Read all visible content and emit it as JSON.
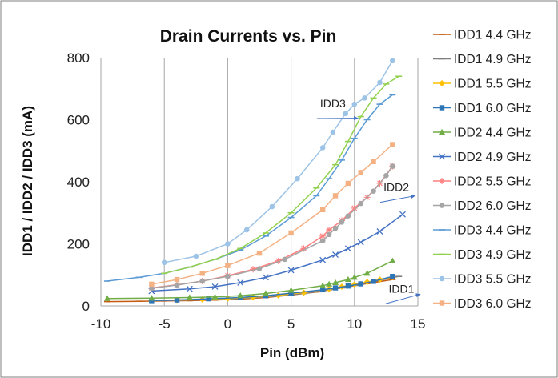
{
  "chart_data": {
    "type": "line",
    "title": "Drain Currents vs. Pin",
    "xlabel": "Pin (dBm)",
    "ylabel": "IDD1 / IDD2 / IDD3 (mA)",
    "xlim": [
      -10,
      15
    ],
    "ylim": [
      0,
      800
    ],
    "x_ticks": [
      "-10",
      "-5",
      "0",
      "5",
      "10",
      "15"
    ],
    "y_ticks": [
      "0",
      "200",
      "400",
      "600",
      "800"
    ],
    "grid": "vertical",
    "legend_position": "right",
    "annotations": [
      {
        "text": "IDD3",
        "x": 8.3,
        "y": 640,
        "arrow_to": [
          10.3,
          605
        ]
      },
      {
        "text": "IDD2",
        "x": 13.3,
        "y": 370,
        "arrow_to": [
          14.8,
          355
        ]
      },
      {
        "text": "IDD1",
        "x": 13.7,
        "y": 43,
        "arrow_to": [
          15.2,
          38
        ]
      }
    ],
    "series": [
      {
        "name": "IDD1 4.4 GHz",
        "color": "#c55a11",
        "marker": "dash",
        "x": [
          -9.5,
          -7,
          -5,
          -3,
          -1,
          1,
          3,
          5,
          7,
          9,
          11,
          13
        ],
        "y": [
          14,
          15,
          16,
          17,
          19,
          22,
          27,
          35,
          45,
          58,
          72,
          85
        ]
      },
      {
        "name": "IDD1 4.9 GHz",
        "color": "#7f7f7f",
        "marker": "dash",
        "x": [
          -6,
          -4,
          -2,
          0,
          2,
          4,
          6,
          8,
          10,
          12,
          13.5
        ],
        "y": [
          17,
          18,
          20,
          22,
          26,
          32,
          40,
          52,
          66,
          82,
          95
        ]
      },
      {
        "name": "IDD1 5.5 GHz",
        "color": "#ffc000",
        "marker": "diamond",
        "x": [
          -4,
          -2,
          0,
          2,
          4,
          6,
          8,
          9,
          10,
          11,
          12,
          13
        ],
        "y": [
          19,
          21,
          24,
          28,
          34,
          43,
          55,
          62,
          69,
          77,
          85,
          93
        ]
      },
      {
        "name": "IDD1 6.0 GHz",
        "color": "#2e75b6",
        "marker": "square",
        "x": [
          -6,
          -4,
          -1.5,
          1,
          3,
          5,
          7.5,
          8.5,
          9.5,
          10.5,
          11.5,
          13
        ],
        "y": [
          17,
          19,
          23,
          27,
          33,
          41,
          52,
          58,
          64,
          71,
          79,
          95
        ]
      },
      {
        "name": "IDD2 4.4 GHz",
        "color": "#70ad47",
        "marker": "triangle",
        "x": [
          -9.5,
          -6,
          -3,
          -1,
          1,
          3,
          5,
          7.5,
          8,
          8.5,
          9.5,
          10,
          11,
          13
        ],
        "y": [
          24,
          25,
          27,
          29,
          33,
          40,
          50,
          65,
          70,
          75,
          85,
          92,
          105,
          145
        ]
      },
      {
        "name": "IDD2 4.9 GHz",
        "color": "#4472c4",
        "marker": "x",
        "x": [
          -6,
          -3,
          -1,
          1,
          3,
          5,
          7.5,
          8.5,
          9.5,
          10.5,
          12,
          13.8
        ],
        "y": [
          48,
          55,
          62,
          75,
          92,
          115,
          148,
          165,
          185,
          205,
          240,
          295
        ]
      },
      {
        "name": "IDD2 5.5 GHz",
        "color": "#ff7f7f",
        "marker": "star",
        "x": [
          -6,
          -4,
          -2,
          0,
          2,
          4,
          6,
          7.5,
          8,
          9,
          10,
          11,
          12,
          13
        ],
        "y": [
          58,
          68,
          80,
          97,
          118,
          145,
          185,
          225,
          245,
          275,
          315,
          350,
          395,
          450
        ]
      },
      {
        "name": "IDD2 6.0 GHz",
        "color": "#a5a5a5",
        "marker": "circle",
        "x": [
          -6,
          -4,
          -2,
          0,
          2.5,
          4.5,
          7.5,
          8,
          8.5,
          9,
          9.5,
          10.5,
          11.5,
          12.5,
          13
        ],
        "y": [
          57,
          67,
          80,
          95,
          120,
          150,
          210,
          230,
          250,
          270,
          290,
          330,
          370,
          420,
          450
        ]
      },
      {
        "name": "IDD3 4.4 GHz",
        "color": "#5b9bd5",
        "marker": "dash",
        "x": [
          -9.5,
          -7,
          -5,
          -3,
          -1,
          1,
          3,
          5,
          7,
          8,
          9,
          10,
          11,
          12,
          13
        ],
        "y": [
          80,
          92,
          105,
          125,
          150,
          180,
          225,
          285,
          355,
          410,
          470,
          540,
          600,
          650,
          680
        ]
      },
      {
        "name": "IDD3 4.9 GHz",
        "color": "#92d050",
        "marker": "dash",
        "x": [
          -5,
          -3,
          -1,
          1,
          3,
          5,
          7,
          8.5,
          9.5,
          10.5,
          11.5,
          12.5,
          13.5
        ],
        "y": [
          105,
          125,
          150,
          185,
          235,
          300,
          380,
          455,
          530,
          610,
          670,
          715,
          740
        ]
      },
      {
        "name": "IDD3 5.5 GHz",
        "color": "#9dc3e6",
        "marker": "circle",
        "x": [
          -5,
          -2.5,
          0,
          1.5,
          3.5,
          5.5,
          7.5,
          8.3,
          9.3,
          10,
          10.8,
          12,
          13
        ],
        "y": [
          140,
          160,
          200,
          245,
          320,
          410,
          510,
          560,
          620,
          650,
          670,
          720,
          790
        ]
      },
      {
        "name": "IDD3 6.0 GHz",
        "color": "#f4b183",
        "marker": "square",
        "x": [
          -6,
          -4,
          -2,
          0,
          2.5,
          5,
          7.5,
          8.5,
          9.5,
          10.5,
          11.5,
          13
        ],
        "y": [
          70,
          85,
          105,
          130,
          170,
          235,
          310,
          355,
          395,
          430,
          465,
          520
        ]
      }
    ]
  }
}
